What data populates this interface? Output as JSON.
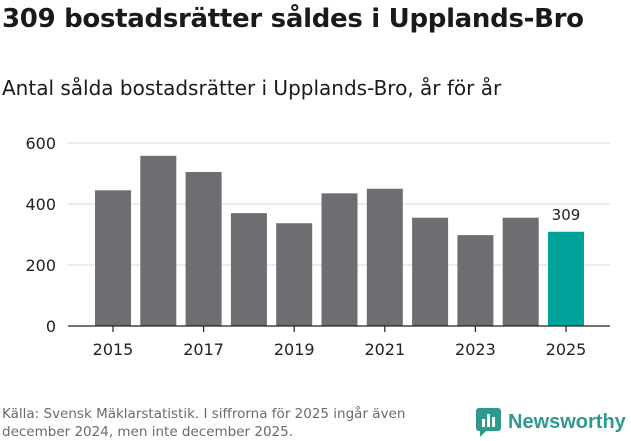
{
  "header": {
    "title": "309 bostadsrätter såldes i Upplands-Bro",
    "subtitle": "Antal sålda bostadsrätter i Upplands-Bro, år för år"
  },
  "chart_data": {
    "type": "bar",
    "title": "Antal sålda bostadsrätter i Upplands-Bro, år för år",
    "xlabel": "",
    "ylabel": "",
    "categories": [
      "2015",
      "2016",
      "2017",
      "2018",
      "2019",
      "2020",
      "2021",
      "2022",
      "2023",
      "2024",
      "2025"
    ],
    "values": [
      445,
      558,
      505,
      370,
      337,
      435,
      450,
      355,
      298,
      355,
      309
    ],
    "x_tick_labels": [
      "2015",
      "2017",
      "2019",
      "2021",
      "2023",
      "2025"
    ],
    "y_ticks": [
      0,
      200,
      400,
      600
    ],
    "ylim": [
      0,
      600
    ],
    "grid": true,
    "highlight": {
      "category": "2025",
      "label": "309"
    },
    "colors": {
      "bar": "#6e6d72",
      "highlight": "#00a39a",
      "grid": "#d9d9d9",
      "axis": "#222222"
    }
  },
  "footer": {
    "source": "Källa: Svensk Mäklarstatistik. I siffrorna för 2025 ingår även december 2024, men inte december 2025.",
    "brand": "Newsworthy",
    "brand_icon": "newsworthy-logo-icon",
    "brand_color": "#2e9a8f"
  }
}
